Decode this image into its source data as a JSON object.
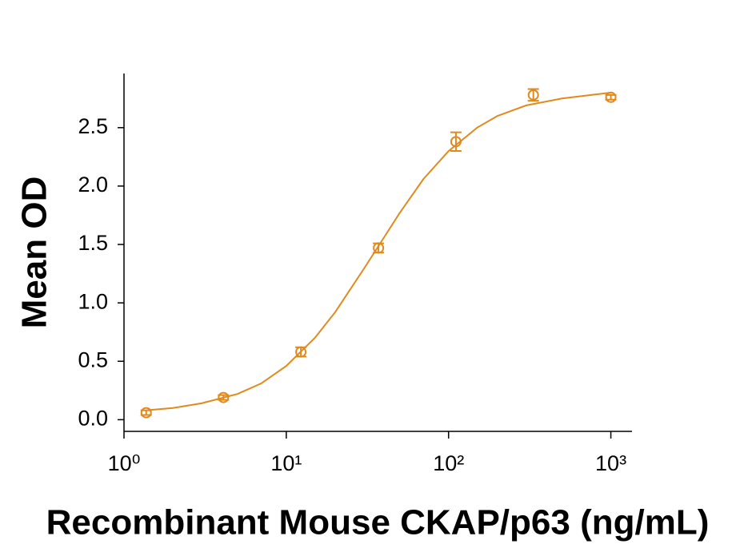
{
  "chart_data": {
    "type": "scatter",
    "x_label": "Recombinant Mouse CKAP/p63 (ng/mL)",
    "y_label": "Mean OD",
    "color": "#e08a1e",
    "xscale": "log",
    "xlim": [
      1,
      1350
    ],
    "ylim": [
      -0.1,
      2.95
    ],
    "xticks": [
      {
        "value": 1,
        "label": "10⁰"
      },
      {
        "value": 10,
        "label": "10¹"
      },
      {
        "value": 100,
        "label": "10²"
      },
      {
        "value": 1000,
        "label": "10³"
      }
    ],
    "yticks": [
      {
        "value": 0,
        "label": "0.0"
      },
      0.5,
      {
        "value": 1,
        "label": "1.0"
      },
      1.5,
      {
        "value": 2,
        "label": "2.0"
      },
      2.5
    ],
    "points": {
      "x": [
        1.37,
        4.1,
        12.3,
        37,
        111,
        333,
        1000
      ],
      "values": [
        0.06,
        0.19,
        0.58,
        1.47,
        2.38,
        2.78,
        2.76
      ],
      "errors": [
        0.02,
        0.02,
        0.04,
        0.04,
        0.08,
        0.05,
        0.02
      ]
    },
    "curve": {
      "x": [
        1.37,
        2,
        3,
        5,
        7,
        10,
        15,
        20,
        30,
        40,
        50,
        70,
        100,
        150,
        200,
        300,
        500,
        1000
      ],
      "values": [
        0.08,
        0.1,
        0.14,
        0.22,
        0.31,
        0.46,
        0.7,
        0.92,
        1.29,
        1.56,
        1.77,
        2.06,
        2.3,
        2.5,
        2.6,
        2.69,
        2.75,
        2.8
      ]
    }
  }
}
